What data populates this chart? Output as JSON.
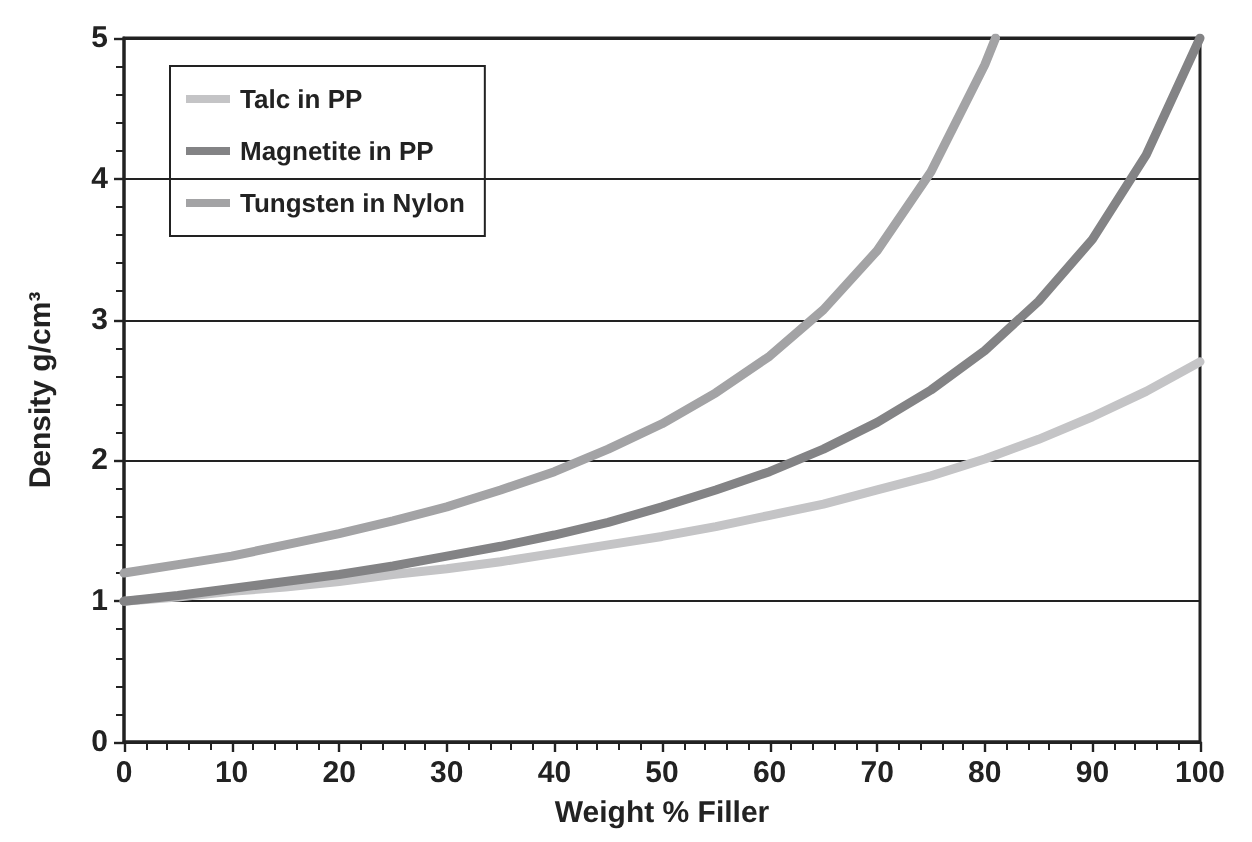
{
  "chart_data": {
    "type": "line",
    "xlabel": "Weight % Filler",
    "ylabel": "Density g/cm³",
    "x": [
      0,
      5,
      10,
      15,
      20,
      25,
      30,
      35,
      40,
      45,
      50,
      55,
      60,
      65,
      70,
      75,
      80,
      85,
      90,
      95,
      100
    ],
    "series": [
      {
        "name": "Talc in PP",
        "color": "#c4c4c6",
        "values": [
          1.0,
          1.03,
          1.07,
          1.1,
          1.14,
          1.19,
          1.23,
          1.28,
          1.34,
          1.4,
          1.46,
          1.53,
          1.61,
          1.69,
          1.79,
          1.89,
          2.01,
          2.15,
          2.31,
          2.49,
          2.7
        ]
      },
      {
        "name": "Magnetite in PP",
        "color": "#838385",
        "values": [
          1.0,
          1.04,
          1.09,
          1.14,
          1.19,
          1.25,
          1.32,
          1.39,
          1.47,
          1.56,
          1.67,
          1.79,
          1.92,
          2.08,
          2.27,
          2.5,
          2.78,
          3.13,
          3.57,
          4.17,
          5.0
        ]
      },
      {
        "name": "Tungsten in Nylon",
        "color": "#a3a3a5",
        "x": [
          0,
          5,
          10,
          15,
          20,
          25,
          30,
          35,
          40,
          45,
          50,
          55,
          60,
          65,
          70,
          75,
          80,
          81
        ],
        "values": [
          1.2,
          1.26,
          1.32,
          1.4,
          1.48,
          1.57,
          1.67,
          1.79,
          1.92,
          2.08,
          2.26,
          2.48,
          2.74,
          3.07,
          3.49,
          4.05,
          4.81,
          5.0
        ]
      }
    ],
    "xlim": [
      0,
      100
    ],
    "xticks": [
      0,
      10,
      20,
      30,
      40,
      50,
      60,
      70,
      80,
      90,
      100
    ],
    "ylim": [
      0,
      5
    ],
    "yticks": [
      0,
      1,
      2,
      3,
      4,
      5
    ],
    "grid": "y",
    "legend": "top left",
    "marker": "none",
    "line_style": "solid"
  }
}
